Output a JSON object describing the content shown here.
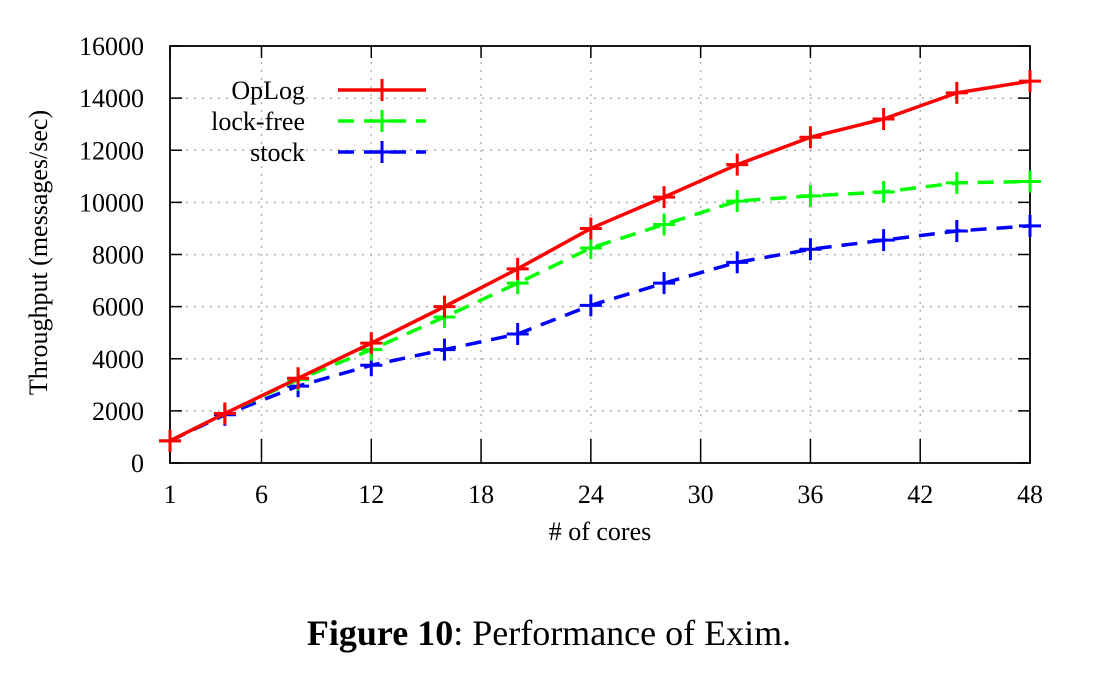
{
  "chart_data": {
    "type": "line",
    "xlabel": "# of cores",
    "ylabel": "Throughput (messages/sec)",
    "x_ticks": [
      "1",
      "6",
      "12",
      "18",
      "24",
      "30",
      "36",
      "42",
      "48"
    ],
    "y_ticks": [
      "0",
      "2000",
      "4000",
      "6000",
      "8000",
      "10000",
      "12000",
      "14000",
      "16000"
    ],
    "xlim": [
      1,
      48
    ],
    "ylim": [
      0,
      16000
    ],
    "grid": true,
    "legend_position": "top-left",
    "series": [
      {
        "name": "OpLog",
        "color": "#ff0000",
        "dash": "solid",
        "x": [
          1,
          4,
          8,
          12,
          16,
          20,
          24,
          28,
          32,
          36,
          40,
          44,
          48
        ],
        "y": [
          850,
          1900,
          3250,
          4600,
          6000,
          7450,
          9000,
          10200,
          11450,
          12500,
          13200,
          14200,
          14650
        ]
      },
      {
        "name": "lock-free",
        "color": "#00ff00",
        "dash": "dashed",
        "x": [
          1,
          4,
          8,
          12,
          16,
          20,
          24,
          28,
          32,
          36,
          40,
          44,
          48
        ],
        "y": [
          850,
          1900,
          3200,
          4350,
          5600,
          6900,
          8250,
          9150,
          10050,
          10250,
          10400,
          10750,
          10800
        ]
      },
      {
        "name": "stock",
        "color": "#0000ff",
        "dash": "dashed",
        "x": [
          1,
          4,
          8,
          12,
          16,
          20,
          24,
          28,
          32,
          36,
          40,
          44,
          48
        ],
        "y": [
          850,
          1850,
          2950,
          3750,
          4350,
          4950,
          6050,
          6900,
          7700,
          8200,
          8550,
          8900,
          9100
        ]
      }
    ]
  },
  "caption": {
    "label": "Figure 10",
    "text": ": Performance of Exim."
  }
}
